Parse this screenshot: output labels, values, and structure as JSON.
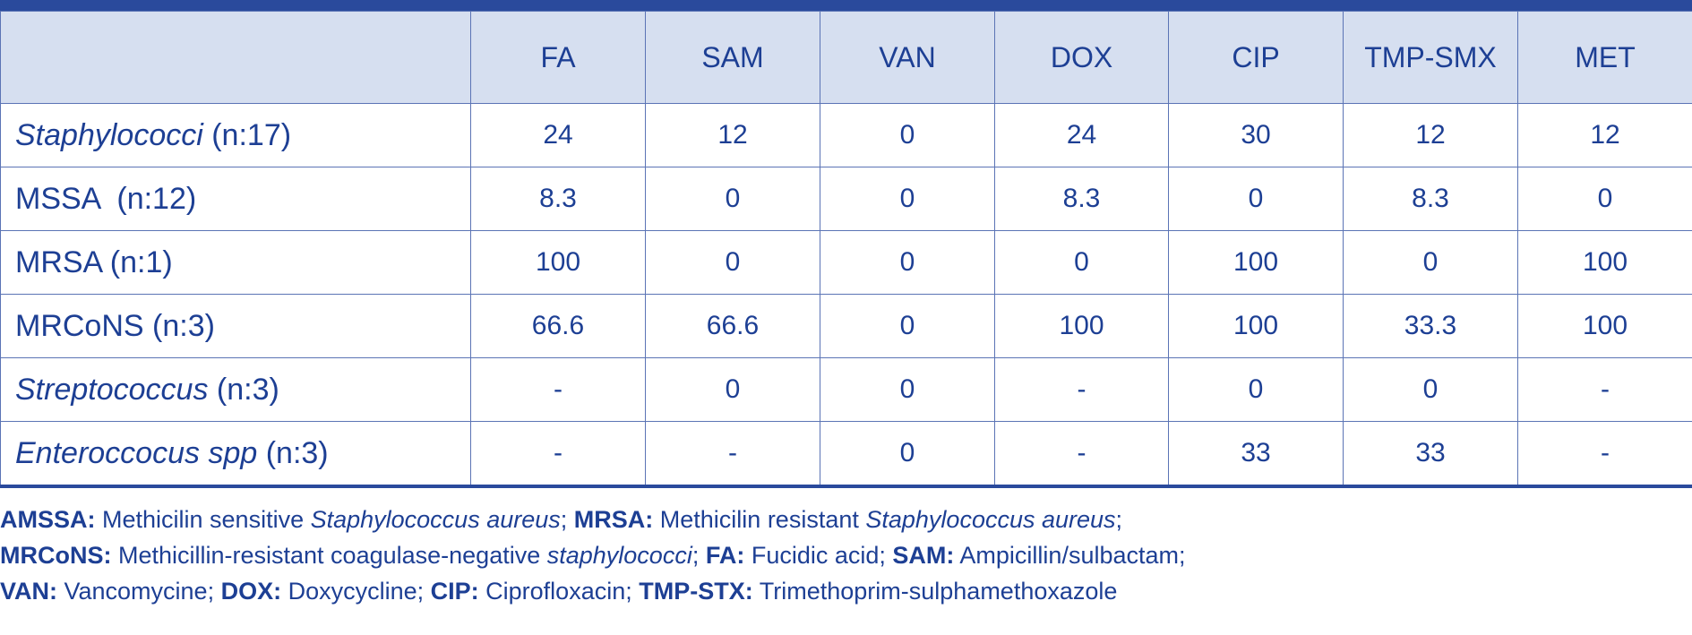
{
  "table": {
    "header": [
      "",
      "FA",
      "SAM",
      "VAN",
      "DOX",
      "CIP",
      "TMP-SMX",
      "MET"
    ],
    "rows": [
      {
        "name_italic": "Staphylococci",
        "name_plain": " (n:17)",
        "values": [
          "24",
          "12",
          "0",
          "24",
          "30",
          "12",
          "12"
        ]
      },
      {
        "name_italic": "",
        "name_plain": "MSSA  (n:12)",
        "values": [
          "8.3",
          "0",
          "0",
          "8.3",
          "0",
          "8.3",
          "0"
        ]
      },
      {
        "name_italic": "",
        "name_plain": "MRSA (n:1)",
        "values": [
          "100",
          "0",
          "0",
          "0",
          "100",
          "0",
          "100"
        ]
      },
      {
        "name_italic": "",
        "name_plain": "MRCoNS (n:3)",
        "values": [
          "66.6",
          "66.6",
          "0",
          "100",
          "100",
          "33.3",
          "100"
        ]
      },
      {
        "name_italic": "Streptococcus",
        "name_plain": " (n:3)",
        "values": [
          "-",
          "0",
          "0",
          "-",
          "0",
          "0",
          "-"
        ]
      },
      {
        "name_italic": "Enteroccocus spp",
        "name_plain": " (n:3)",
        "values": [
          "-",
          "-",
          "0",
          "-",
          "33",
          "33",
          "-"
        ]
      }
    ]
  },
  "footnotes": {
    "line1": {
      "b1": "AMSSA:",
      "t1": " Methicilin sensitive ",
      "i1": "Staphylococcus aureus",
      "t2": "; ",
      "b2": "MRSA:",
      "t3": " Methicilin resistant ",
      "i2": "Staphylococcus aureus",
      "t4": ";"
    },
    "line2": {
      "b1": "MRCoNS:",
      "t1": " Methicillin-resistant coagulase-negative ",
      "i1": "staphylococci",
      "t2": "; ",
      "b2": "FA:",
      "t3": " Fucidic acid; ",
      "b3": "SAM:",
      "t4": " Ampicillin/sulbactam;"
    },
    "line3": {
      "b1": "VAN:",
      "t1": " Vancomycine; ",
      "b2": "DOX:",
      "t2": " Doxycycline; ",
      "b3": "CIP:",
      "t3": " Ciprofloxacin; ",
      "b4": "TMP-STX:",
      "t4": " Trimethoprim-sulphamethoxazole"
    }
  },
  "colors": {
    "text": "#1d3f94",
    "header_bg": "#d6dff0",
    "rule": "#2a4a9c",
    "grid": "#5b74b5"
  }
}
